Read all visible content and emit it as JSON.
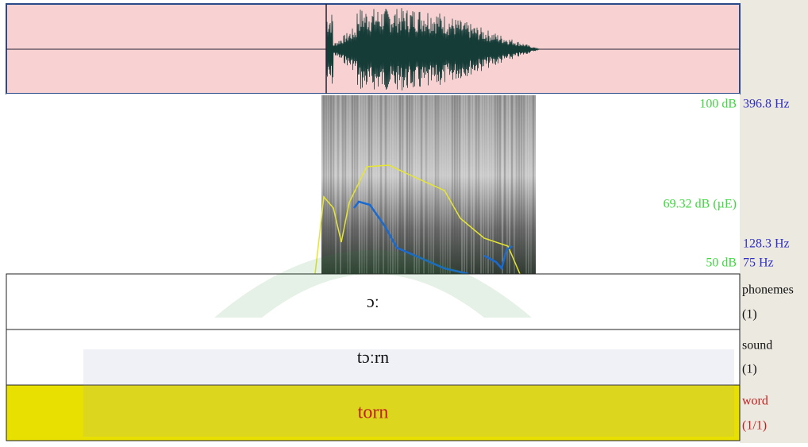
{
  "spectrogram": {
    "intensity_labels": [
      "100 dB",
      "69.32 dB (µE)",
      "50 dB"
    ],
    "pitch_labels": [
      "396.8 Hz",
      "128.3 Hz",
      "75 Hz"
    ]
  },
  "tiers": [
    {
      "name": "phonemes",
      "count": "(1)",
      "text": "ɔː"
    },
    {
      "name": "sound",
      "count": "(1)",
      "text": "tɔːrn"
    },
    {
      "name": "word",
      "count": "(1/1)",
      "text": "torn"
    }
  ]
}
